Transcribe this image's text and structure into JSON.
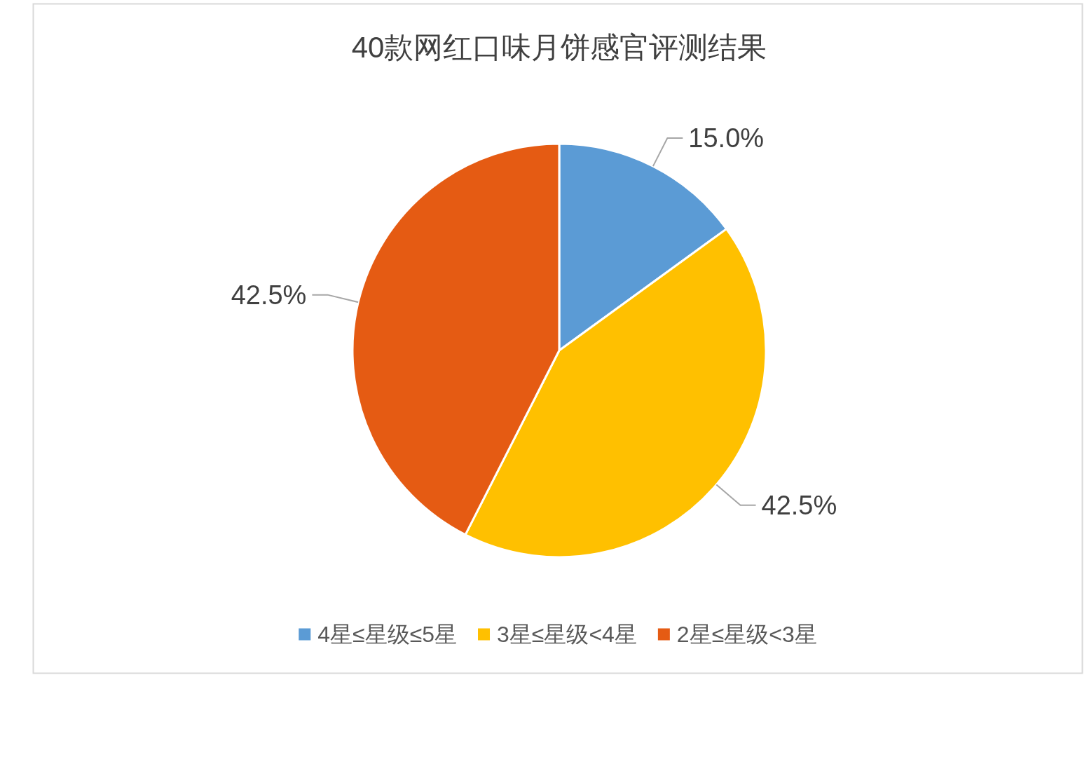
{
  "chart_data": {
    "type": "pie",
    "title": "40款网红口味月饼感官评测结果",
    "categories": [
      "4星≤星级≤5星",
      "3星≤星级<4星",
      "2星≤星级<3星"
    ],
    "values": [
      15.0,
      42.5,
      42.5
    ],
    "colors": [
      "#5b9bd5",
      "#ffc000",
      "#e55b13"
    ],
    "value_labels": [
      "15.0%",
      "42.5%",
      "42.5%"
    ],
    "legend": "bottom"
  }
}
